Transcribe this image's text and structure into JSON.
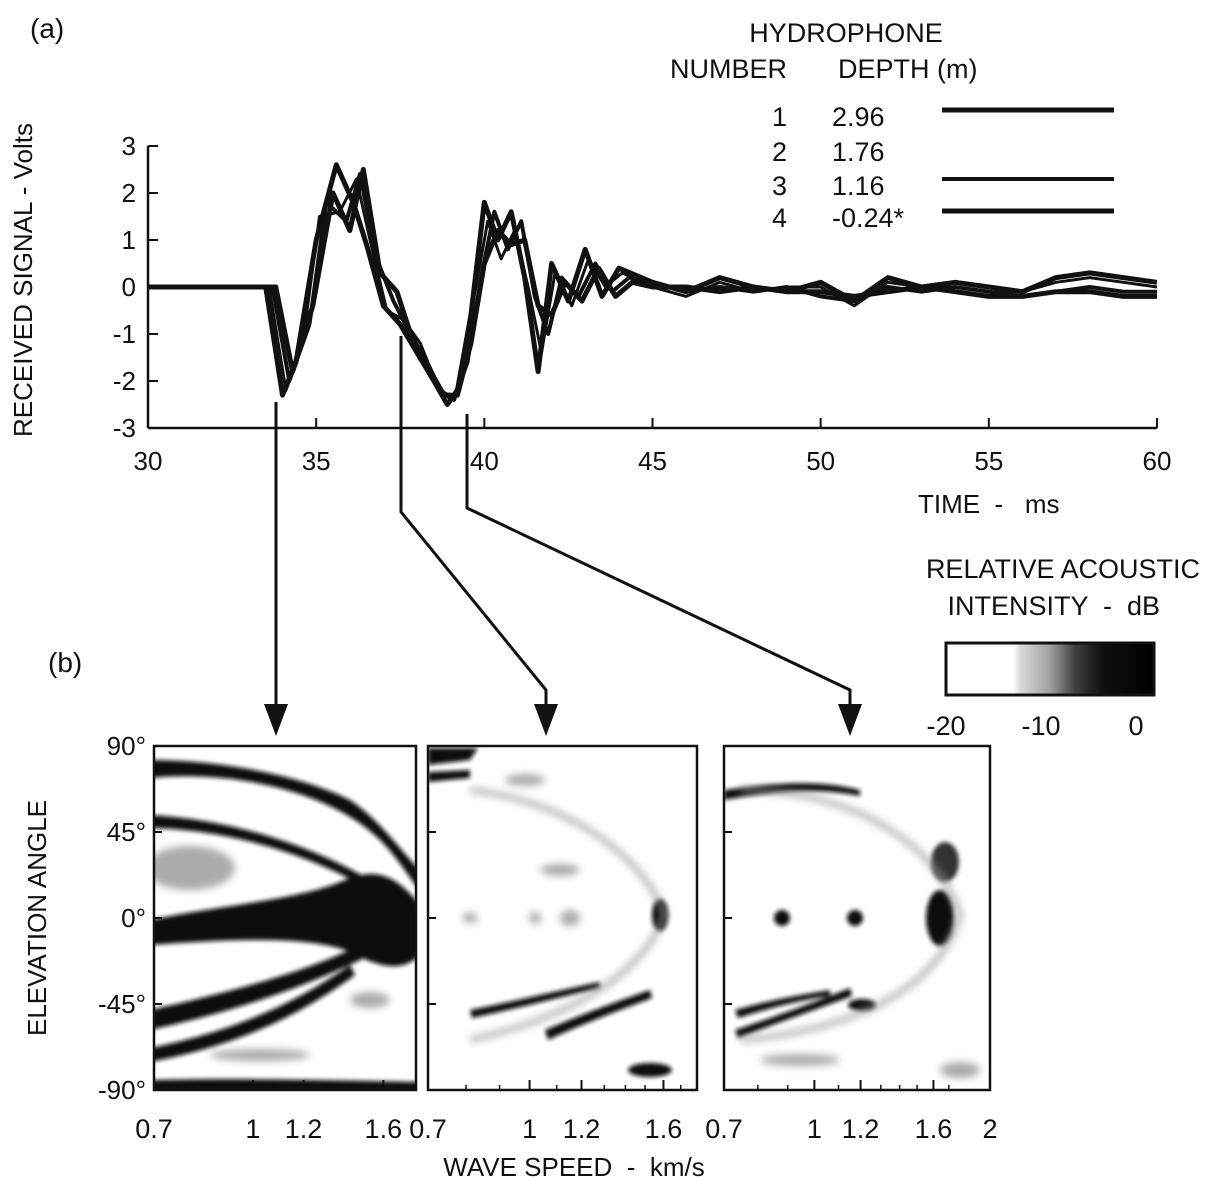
{
  "panel_a": {
    "label": "(a)",
    "legend": {
      "title": "HYDROPHONE",
      "col_number": "NUMBER",
      "col_depth": "DEPTH (m)",
      "entries": [
        {
          "number": "1",
          "depth": "2.96"
        },
        {
          "number": "2",
          "depth": "1.76"
        },
        {
          "number": "3",
          "depth": "1.16"
        },
        {
          "number": "4",
          "depth": "-0.24*"
        }
      ]
    }
  },
  "panel_b": {
    "label": "(b)",
    "colorbar": {
      "title_line1": "RELATIVE ACOUSTIC",
      "title_line2": "INTENSITY  -  dB",
      "ticks": [
        "-20",
        "-10",
        "0"
      ],
      "range": [
        -20,
        0
      ]
    }
  },
  "chart_data": [
    {
      "type": "line",
      "xlabel": "TIME  -   ms",
      "ylabel": "RECEIVED SIGNAL  - Volts",
      "xlim": [
        30,
        60
      ],
      "ylim": [
        -3,
        3
      ],
      "x_ticks": [
        "30",
        "35",
        "40",
        "45",
        "50",
        "55",
        "60"
      ],
      "y_ticks": [
        "3",
        "2",
        "1",
        "0",
        "-1",
        "-2",
        "-3"
      ],
      "grid": false,
      "legend_position": "top-right",
      "series": [
        {
          "name": "1",
          "x": [
            30,
            33.5,
            34.0,
            34.4,
            35.0,
            35.6,
            36.1,
            36.5,
            37.0,
            37.5,
            38.0,
            38.5,
            38.9,
            39.2,
            39.6,
            40.0,
            40.4,
            40.8,
            41.2,
            41.6,
            42.0,
            42.5,
            43.0,
            43.5,
            44.0,
            45,
            46,
            47,
            48,
            49,
            50,
            51,
            52,
            53,
            54,
            55,
            56,
            57,
            58,
            59,
            60
          ],
          "y": [
            0,
            0,
            -2.3,
            -1.6,
            1.0,
            2.6,
            1.8,
            0.9,
            -0.4,
            -0.8,
            -1.4,
            -2.0,
            -2.5,
            -2.2,
            -0.6,
            1.8,
            1.0,
            1.6,
            0.2,
            -1.8,
            0.5,
            -0.3,
            0.8,
            -0.2,
            0.4,
            0.1,
            -0.1,
            0.2,
            0.0,
            -0.1,
            0.1,
            -0.3,
            0.2,
            0.0,
            0.1,
            0.0,
            -0.1,
            0.2,
            0.3,
            0.2,
            0.1
          ]
        },
        {
          "name": "2",
          "x": [
            30,
            33.6,
            34.1,
            34.6,
            35.1,
            35.7,
            36.2,
            36.6,
            37.1,
            37.6,
            38.1,
            38.6,
            39.0,
            39.3,
            39.7,
            40.1,
            40.5,
            40.9,
            41.3,
            41.7,
            42.1,
            42.6,
            43.1,
            43.6,
            44.1,
            45,
            46,
            47,
            48,
            49,
            50,
            51,
            52,
            53,
            54,
            55,
            56,
            57,
            58,
            59,
            60
          ],
          "y": [
            0,
            0,
            -2.2,
            -1.2,
            1.5,
            1.6,
            2.3,
            1.0,
            -0.5,
            -0.7,
            -1.2,
            -2.1,
            -2.4,
            -2.0,
            -0.2,
            1.4,
            0.6,
            1.2,
            0.0,
            -1.4,
            0.3,
            -0.4,
            0.6,
            0.0,
            0.3,
            0.0,
            -0.2,
            0.1,
            -0.1,
            0.0,
            0.0,
            -0.4,
            0.1,
            0.0,
            0.0,
            -0.1,
            -0.1,
            0.1,
            0.2,
            0.1,
            0.0
          ]
        },
        {
          "name": "3",
          "x": [
            30,
            33.7,
            34.2,
            34.8,
            35.3,
            35.9,
            36.3,
            36.8,
            37.3,
            37.8,
            38.3,
            38.7,
            39.1,
            39.5,
            39.9,
            40.3,
            40.7,
            41.1,
            41.5,
            41.9,
            42.3,
            42.8,
            43.3,
            43.8,
            44.3,
            45,
            46,
            47,
            48,
            49,
            50,
            51,
            52,
            53,
            54,
            55,
            56,
            57,
            58,
            59,
            60
          ],
          "y": [
            0,
            0,
            -2.0,
            -0.8,
            1.8,
            1.4,
            2.4,
            0.6,
            -0.3,
            -1.0,
            -1.6,
            -2.2,
            -2.4,
            -1.6,
            0.2,
            1.6,
            0.8,
            1.4,
            -0.2,
            -1.0,
            0.2,
            -0.2,
            0.5,
            -0.1,
            0.2,
            0.1,
            -0.1,
            0.0,
            -0.1,
            0.0,
            -0.2,
            -0.3,
            0.0,
            -0.1,
            0.0,
            -0.1,
            -0.2,
            -0.1,
            0.0,
            -0.1,
            -0.1
          ]
        },
        {
          "name": "4",
          "x": [
            30,
            33.8,
            34.3,
            34.9,
            35.5,
            36.0,
            36.4,
            36.9,
            37.4,
            37.9,
            38.4,
            38.8,
            39.2,
            39.6,
            40.0,
            40.4,
            40.8,
            41.2,
            41.6,
            42.0,
            42.4,
            42.9,
            43.4,
            43.9,
            44.4,
            45,
            46,
            47,
            48,
            49,
            50,
            51,
            52,
            53,
            54,
            55,
            56,
            57,
            58,
            59,
            60
          ],
          "y": [
            0,
            0,
            -1.8,
            -0.4,
            2.0,
            1.2,
            2.5,
            0.3,
            -0.1,
            -1.2,
            -1.8,
            -2.3,
            -2.3,
            -1.2,
            0.5,
            1.2,
            0.9,
            1.0,
            -0.4,
            -0.6,
            0.1,
            -0.3,
            0.4,
            -0.2,
            0.1,
            0.0,
            0.0,
            -0.1,
            0.0,
            -0.1,
            -0.1,
            -0.2,
            -0.1,
            0.0,
            -0.1,
            -0.2,
            -0.2,
            -0.1,
            -0.1,
            -0.2,
            -0.2
          ]
        }
      ],
      "annotations": [
        {
          "time": 33.9,
          "target": "panel 1"
        },
        {
          "time": 37.5,
          "target": "panel 2"
        },
        {
          "time": 39.5,
          "target": "panel 3"
        }
      ]
    },
    {
      "type": "heatmap",
      "xlabel": "WAVE SPEED  -  km/s",
      "ylabel": "ELEVATION ANGLE",
      "x_scale": "log",
      "xlim": [
        0.7,
        1.8
      ],
      "ylim": [
        -90,
        90
      ],
      "x_ticks": [
        "0.7",
        "1",
        "1.2",
        "1.6"
      ],
      "y_ticks": [
        "90°",
        "45°",
        "0°",
        "-45°",
        "-90°"
      ],
      "panels": 3
    },
    {
      "type": "heatmap",
      "xlim": [
        0.7,
        1.8
      ],
      "x_ticks": [
        "0.7",
        "1",
        "1.2",
        "1.6"
      ]
    },
    {
      "type": "heatmap",
      "xlim": [
        0.7,
        2
      ],
      "x_ticks": [
        "0.7",
        "1",
        "1.2",
        "1.6",
        "2"
      ]
    }
  ]
}
